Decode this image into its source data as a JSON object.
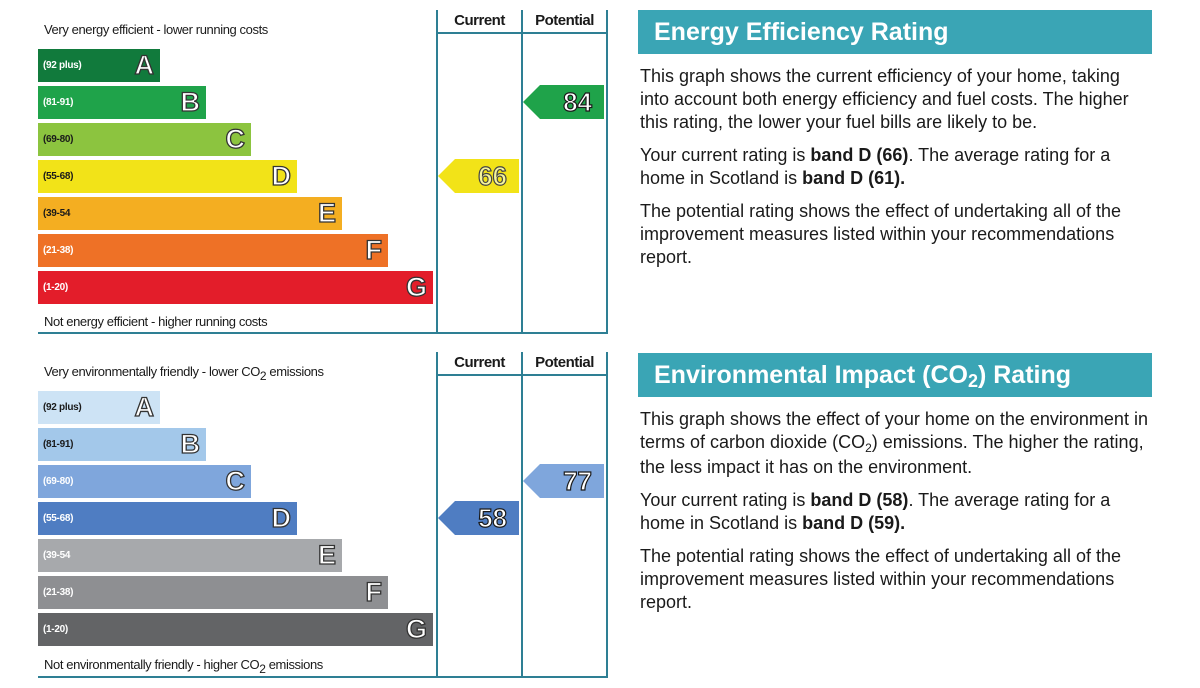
{
  "chart_data": [
    {
      "type": "table",
      "top_label": "Very energy efficient - lower running costs",
      "bottom_label": "Not energy efficient - higher running costs",
      "columns": [
        "Current",
        "Potential"
      ],
      "bands": [
        {
          "letter": "A",
          "range": "(92 plus)",
          "color": "#117a3c"
        },
        {
          "letter": "B",
          "range": "(81-91)",
          "color": "#1fa34a"
        },
        {
          "letter": "C",
          "range": "(69-80)",
          "color": "#8cc43f"
        },
        {
          "letter": "D",
          "range": "(55-68)",
          "color": "#f2e318"
        },
        {
          "letter": "E",
          "range": "(39-54",
          "color": "#f4ae21"
        },
        {
          "letter": "F",
          "range": "(21-38)",
          "color": "#ee7126"
        },
        {
          "letter": "G",
          "range": "(1-20)",
          "color": "#e31d2a"
        }
      ],
      "current": {
        "value": 66,
        "band": "D",
        "color": "#f2e318"
      },
      "potential": {
        "value": 84,
        "band": "B",
        "color": "#1fa34a"
      }
    },
    {
      "type": "table",
      "top_label_pre": "Very environmentally friendly - lower CO",
      "top_label_sub": "2",
      "top_label_post": " emissions",
      "bottom_label_pre": "Not environmentally friendly - higher CO",
      "bottom_label_sub": "2",
      "bottom_label_post": " emissions",
      "columns": [
        "Current",
        "Potential"
      ],
      "bands": [
        {
          "letter": "A",
          "range": "(92 plus)",
          "color": "#cde3f5"
        },
        {
          "letter": "B",
          "range": "(81-91)",
          "color": "#a3c8ea"
        },
        {
          "letter": "C",
          "range": "(69-80)",
          "color": "#7fa6dc"
        },
        {
          "letter": "D",
          "range": "(55-68)",
          "color": "#4f7dc2"
        },
        {
          "letter": "E",
          "range": "(39-54",
          "color": "#a7a9ac"
        },
        {
          "letter": "F",
          "range": "(21-38)",
          "color": "#8e8f92"
        },
        {
          "letter": "G",
          "range": "(1-20)",
          "color": "#636466"
        }
      ],
      "current": {
        "value": 58,
        "band": "D",
        "color": "#4f7dc2"
      },
      "potential": {
        "value": 77,
        "band": "C",
        "color": "#7fa6dc"
      }
    }
  ],
  "energy_panel": {
    "title": "Energy Efficiency Rating",
    "p1": "This graph shows the current efficiency of your home, taking into account both energy efficiency and fuel costs. The higher this rating, the lower your fuel bills are likely to be.",
    "p2_pre": "Your current rating is ",
    "p2_b1": "band D (66)",
    "p2_mid": ". The average rating for a home in Scotland is ",
    "p2_b2": "band D (61).",
    "p3": "The potential rating shows the effect of undertaking all of the improvement measures listed within your recommendations report."
  },
  "env_panel": {
    "title_pre": "Environmental Impact (CO",
    "title_sub": "2",
    "title_post": ") Rating",
    "p1_pre": "This graph shows the effect of your home on the environment in terms of carbon dioxide (CO",
    "p1_sub": "2",
    "p1_post": ") emissions. The higher the rating, the less impact it has on the environment.",
    "p2_pre": "Your current rating is ",
    "p2_b1": "band D (58)",
    "p2_mid": ". The average rating for a home in Scotland is ",
    "p2_b2": "band D (59).",
    "p3": "The potential rating shows the effect of undertaking all of the improvement measures listed within your recommendations report."
  },
  "colors": {
    "frame": "#2e7f94",
    "header_band": "#3aa5b5"
  }
}
